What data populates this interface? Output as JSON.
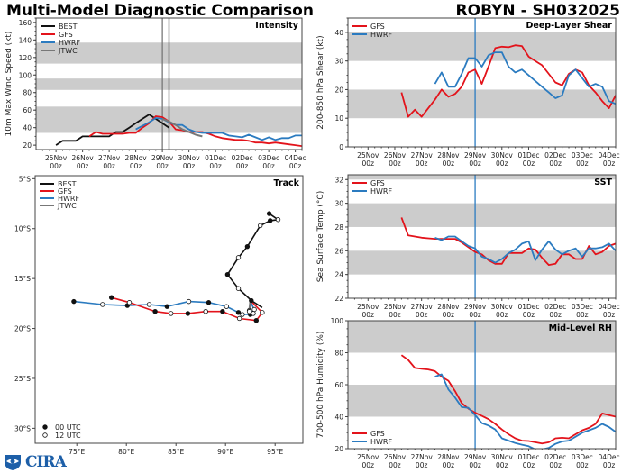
{
  "title": "Multi-Model Diagnostic Comparison",
  "storm": "ROBYN - SH032025",
  "colors": {
    "BEST": "#111111",
    "GFS": "#e3131b",
    "HWRF": "#2b7bc0",
    "JTWC": "#777777",
    "band": "#cccccc"
  },
  "logo": {
    "text": "CIRA",
    "icon": "noaa-logo-icon"
  },
  "chart_data": [
    {
      "id": "intensity",
      "type": "line",
      "title": "Intensity",
      "ylabel": "10m Max Wind Speed (kt)",
      "ylim": [
        15,
        165
      ],
      "yticks": [
        20,
        40,
        60,
        80,
        100,
        120,
        140,
        160
      ],
      "xlim": [
        -0.75,
        9.25
      ],
      "xtick_labels": [
        "25Nov\n00z",
        "26Nov\n00z",
        "27Nov\n00z",
        "28Nov\n00z",
        "29Nov\n00z",
        "30Nov\n00z",
        "01Dec\n00z",
        "02Dec\n00z",
        "03Dec\n00z",
        "04Dec\n00z"
      ],
      "bands": [
        [
          34,
          64
        ],
        [
          83,
          96
        ],
        [
          113,
          137
        ]
      ],
      "vlines": [
        {
          "x": 4.0,
          "color": "#777777"
        },
        {
          "x": 4.25,
          "color": "#111111"
        }
      ],
      "legend": "top-left",
      "series": [
        {
          "name": "BEST",
          "x": [
            0,
            0.25,
            0.5,
            0.75,
            1,
            1.25,
            1.5,
            1.75,
            2,
            2.25,
            2.5,
            2.75,
            3,
            3.25,
            3.5,
            3.75,
            4,
            4.25
          ],
          "y": [
            20,
            25,
            25,
            25,
            30,
            30,
            30,
            30,
            30,
            35,
            35,
            40,
            45,
            50,
            55,
            50,
            45,
            40
          ]
        },
        {
          "name": "GFS",
          "x": [
            1.25,
            1.5,
            1.75,
            2,
            2.25,
            2.5,
            2.75,
            3,
            3.25,
            3.5,
            3.75,
            4,
            4.25,
            4.5,
            4.75,
            5,
            5.25,
            5.5,
            5.75,
            6,
            6.25,
            6.5,
            6.75,
            7,
            7.25,
            7.5,
            7.75,
            8,
            8.25,
            8.5,
            8.75,
            9,
            9.25
          ],
          "y": [
            30,
            35,
            33,
            33,
            33,
            33,
            34,
            34,
            40,
            45,
            53,
            52,
            47,
            38,
            37,
            35,
            35,
            35,
            33,
            30,
            28,
            27,
            26,
            26,
            25,
            23,
            23,
            22,
            23,
            22,
            21,
            20,
            19
          ]
        },
        {
          "name": "HWRF",
          "x": [
            3.0,
            3.25,
            3.5,
            3.75,
            4,
            4.25,
            4.5,
            4.75,
            5,
            5.25,
            5.5,
            5.75,
            6,
            6.25,
            6.5,
            6.75,
            7,
            7.25,
            7.5,
            7.75,
            8,
            8.25,
            8.5,
            8.75,
            9,
            9.25
          ],
          "y": [
            38,
            42,
            46,
            51,
            50,
            46,
            43,
            43,
            38,
            35,
            34,
            34,
            34,
            34,
            31,
            30,
            29,
            32,
            29,
            26,
            29,
            26,
            28,
            28,
            31,
            31
          ]
        },
        {
          "name": "JTWC",
          "x": [
            4.0,
            4.25,
            4.5,
            4.75,
            5,
            5.25,
            5.5
          ],
          "y": [
            50,
            47,
            43,
            38,
            35,
            32,
            30
          ]
        }
      ]
    },
    {
      "id": "shear",
      "type": "line",
      "title": "Deep-Layer Shear",
      "ylabel": "200-850 hPa Shear (kt)",
      "ylim": [
        0,
        45
      ],
      "yticks": [
        0,
        10,
        20,
        30,
        40
      ],
      "xlim": [
        -0.75,
        9.25
      ],
      "bands": [
        [
          10,
          20
        ],
        [
          30,
          40
        ]
      ],
      "vlines": [
        {
          "x": 4.0,
          "color": "#2b7bc0"
        }
      ],
      "legend": "top-left",
      "series": [
        {
          "name": "GFS",
          "x": [
            1.25,
            1.5,
            1.75,
            2,
            2.25,
            2.5,
            2.75,
            3,
            3.25,
            3.5,
            3.75,
            4,
            4.25,
            4.5,
            4.75,
            5,
            5.25,
            5.5,
            5.75,
            6,
            6.25,
            6.5,
            6.75,
            7,
            7.25,
            7.5,
            7.75,
            8,
            8.25,
            8.5,
            8.75,
            9,
            9.25
          ],
          "y": [
            19,
            10.5,
            13,
            10.5,
            13.5,
            16.5,
            20,
            17.5,
            18.5,
            21,
            26,
            27,
            22,
            28,
            34.5,
            35,
            34.8,
            35.5,
            35.2,
            31.5,
            30,
            28.5,
            25.5,
            22.5,
            21.5,
            25.5,
            27,
            26,
            21.5,
            19,
            16,
            13.5,
            18
          ]
        },
        {
          "name": "HWRF",
          "x": [
            2.5,
            2.75,
            3,
            3.25,
            3.5,
            3.75,
            4,
            4.25,
            4.5,
            4.75,
            5,
            5.25,
            5.5,
            5.75,
            6,
            6.25,
            6.5,
            6.75,
            7,
            7.25,
            7.5,
            7.75,
            8,
            8.25,
            8.5,
            8.75,
            9,
            9.25
          ],
          "y": [
            22,
            26,
            21,
            21,
            25.5,
            31,
            31,
            28,
            32,
            33,
            33,
            28,
            26,
            27,
            25,
            23,
            21,
            19,
            17,
            18,
            25,
            27,
            24,
            21,
            22,
            21,
            16,
            15
          ]
        }
      ]
    },
    {
      "id": "track",
      "type": "line",
      "title": "Track",
      "xlim": [
        70.8,
        97.8
      ],
      "ylim": [
        -31.5,
        -4.7
      ],
      "xticks": [
        75,
        80,
        85,
        90,
        95
      ],
      "xtick_labels": [
        "75°E",
        "80°E",
        "85°E",
        "90°E",
        "95°E"
      ],
      "yticks": [
        -5,
        -10,
        -15,
        -20,
        -25,
        -30
      ],
      "ytick_labels": [
        "5°S",
        "10°S",
        "15°S",
        "20°S",
        "25°S",
        "30°S"
      ],
      "legend": "top-left",
      "marker_legend": [
        {
          "label": "00 UTC",
          "filled": true
        },
        {
          "label": "12 UTC",
          "filled": false
        }
      ],
      "series": [
        {
          "name": "BEST",
          "lon": [
            94.4,
            95.3,
            94.5,
            93.5,
            92.2,
            91.3,
            90.2,
            91.3,
            92.6,
            93.7
          ],
          "lat": [
            -8.5,
            -9.1,
            -9.2,
            -9.7,
            -11.8,
            -12.9,
            -14.6,
            -16.0,
            -17.2,
            -17.9
          ],
          "markers": [
            1,
            0,
            1,
            0,
            1,
            0,
            1,
            0,
            1,
            null
          ]
        },
        {
          "name": "GFS",
          "lon": [
            78.5,
            80.3,
            82.9,
            84.5,
            86.2,
            88.0,
            89.7,
            91.4,
            93.1,
            93.7,
            92.6
          ],
          "lat": [
            -16.9,
            -17.4,
            -18.3,
            -18.5,
            -18.5,
            -18.3,
            -18.3,
            -19.0,
            -19.2,
            -18.4,
            -17.3
          ],
          "markers": [
            1,
            0,
            1,
            0,
            1,
            0,
            1,
            0,
            1,
            0,
            null
          ]
        },
        {
          "name": "HWRF",
          "lon": [
            74.7,
            77.6,
            80.1,
            82.3,
            84.1,
            86.3,
            88.3,
            90.1,
            91.3,
            91.7,
            92.5,
            92.9,
            92.5
          ],
          "lat": [
            -17.3,
            -17.6,
            -17.7,
            -17.6,
            -17.8,
            -17.3,
            -17.4,
            -17.8,
            -18.4,
            -18.6,
            -18.6,
            -18.1,
            -17.3
          ],
          "markers": [
            1,
            0,
            1,
            0,
            1,
            0,
            1,
            0,
            1,
            0,
            1,
            0,
            null
          ]
        },
        {
          "name": "JTWC",
          "lon": [
            92.5,
            92.4,
            92.8,
            92.4
          ],
          "lat": [
            -17.3,
            -18.2,
            -18.5,
            -18.3
          ],
          "markers": [
            null,
            0,
            0,
            0
          ]
        }
      ]
    },
    {
      "id": "sst",
      "type": "line",
      "title": "SST",
      "ylabel": "Sea Surface Temp (°C)",
      "ylim": [
        22,
        32.4
      ],
      "yticks": [
        22,
        24,
        26,
        28,
        30,
        32
      ],
      "xlim": [
        -0.75,
        9.25
      ],
      "bands": [
        [
          24,
          26
        ],
        [
          28,
          30
        ],
        [
          32,
          33
        ]
      ],
      "vlines": [
        {
          "x": 4.0,
          "color": "#2b7bc0"
        }
      ],
      "legend": "top-left",
      "series": [
        {
          "name": "GFS",
          "x": [
            1.25,
            1.5,
            1.75,
            2,
            2.25,
            2.5,
            2.75,
            3,
            3.25,
            3.5,
            3.75,
            4,
            4.25,
            4.5,
            4.75,
            5,
            5.25,
            5.5,
            5.75,
            6,
            6.25,
            6.5,
            6.75,
            7,
            7.25,
            7.5,
            7.75,
            8,
            8.25,
            8.5,
            8.75,
            9,
            9.25
          ],
          "y": [
            28.8,
            27.3,
            27.2,
            27.1,
            27.05,
            27.0,
            27.0,
            27.0,
            27.0,
            26.7,
            26.3,
            25.9,
            25.7,
            25.2,
            24.9,
            24.9,
            25.8,
            25.8,
            25.8,
            26.2,
            26.1,
            25.4,
            24.8,
            24.9,
            25.7,
            25.7,
            25.3,
            25.3,
            26.4,
            25.7,
            25.9,
            26.4,
            26.6
          ]
        },
        {
          "name": "HWRF",
          "x": [
            2.5,
            2.75,
            3,
            3.25,
            3.5,
            3.75,
            4,
            4.25,
            4.5,
            4.75,
            5,
            5.25,
            5.5,
            5.75,
            6,
            6.25,
            6.5,
            6.75,
            7,
            7.25,
            7.5,
            7.75,
            8,
            8.25,
            8.5,
            8.75,
            9,
            9.25
          ],
          "y": [
            27.1,
            26.9,
            27.2,
            27.2,
            26.8,
            26.4,
            26.2,
            25.5,
            25.3,
            25.0,
            25.3,
            25.8,
            26.1,
            26.6,
            26.8,
            25.2,
            26.1,
            26.8,
            26.1,
            25.7,
            26.0,
            26.2,
            25.5,
            26.2,
            26.2,
            26.3,
            26.6,
            26.0
          ]
        }
      ]
    },
    {
      "id": "rh",
      "type": "line",
      "title": "Mid-Level RH",
      "ylabel": "700-500 hPa Humidity (%)",
      "ylim": [
        20,
        100
      ],
      "yticks": [
        20,
        40,
        60,
        80,
        100
      ],
      "xlim": [
        -0.75,
        9.25
      ],
      "bands": [
        [
          40,
          60
        ],
        [
          80,
          100
        ]
      ],
      "vlines": [
        {
          "x": 4.0,
          "color": "#2b7bc0"
        }
      ],
      "legend": "bottom-left",
      "series": [
        {
          "name": "GFS",
          "x": [
            1.25,
            1.5,
            1.75,
            2,
            2.25,
            2.5,
            2.75,
            3,
            3.25,
            3.5,
            3.75,
            4,
            4.25,
            4.5,
            4.75,
            5,
            5.25,
            5.5,
            5.75,
            6,
            6.25,
            6.5,
            6.75,
            7,
            7.25,
            7.5,
            7.75,
            8,
            8.25,
            8.5,
            8.75,
            9,
            9.25
          ],
          "y": [
            78.5,
            75.5,
            70.5,
            70,
            69.5,
            68.5,
            65,
            62.5,
            56,
            48.5,
            45,
            42.5,
            40.5,
            38.5,
            35.5,
            32,
            29,
            26.5,
            25,
            24.8,
            24,
            23.2,
            24,
            26.5,
            26.8,
            26.5,
            29,
            31.5,
            33,
            35.5,
            42,
            41,
            40
          ]
        },
        {
          "name": "HWRF",
          "x": [
            2.5,
            2.75,
            3,
            3.25,
            3.5,
            3.75,
            4,
            4.25,
            4.5,
            4.75,
            5,
            5.25,
            5.5,
            5.75,
            6,
            6.25,
            6.5,
            6.75,
            7,
            7.25,
            7.5,
            7.75,
            8,
            8.25,
            8.5,
            8.75,
            9,
            9.25
          ],
          "y": [
            65,
            66.5,
            57,
            52,
            46,
            45.5,
            41,
            36,
            34.5,
            32,
            26.5,
            25,
            23.5,
            22.5,
            21.5,
            19.5,
            19.5,
            20.5,
            23,
            24.5,
            25,
            27.5,
            30,
            31.5,
            33,
            35.5,
            33.5,
            30.5
          ]
        }
      ]
    }
  ]
}
